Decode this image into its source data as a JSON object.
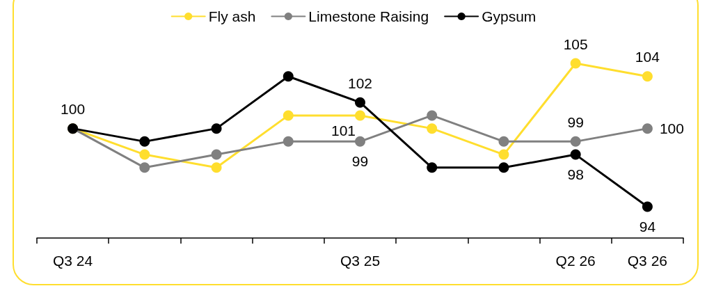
{
  "chart_data": {
    "type": "line",
    "categories": [
      "Q3 24",
      null,
      null,
      null,
      "Q3 25",
      null,
      null,
      "Q2 26",
      "Q3 26"
    ],
    "legend": "top",
    "marker": "circle",
    "line_style": "solid",
    "grid": false,
    "tick_labels": "x",
    "series": [
      {
        "name": "Fly ash",
        "color": "#ffde2e",
        "values": [
          100,
          98,
          97,
          101,
          101,
          100,
          98,
          105,
          104
        ],
        "value_labels": [
          null,
          null,
          null,
          null,
          "101",
          null,
          null,
          "105",
          "104"
        ]
      },
      {
        "name": "Limestone Raising",
        "color": "#808080",
        "values": [
          100,
          97,
          98,
          99,
          99,
          101,
          99,
          99,
          100
        ],
        "value_labels": [
          null,
          null,
          null,
          null,
          "99",
          null,
          null,
          "99",
          "100"
        ]
      },
      {
        "name": "Gypsum",
        "color": "#000000",
        "values": [
          100,
          99,
          100,
          104,
          102,
          97,
          97,
          98,
          94
        ],
        "value_labels": [
          "100",
          null,
          null,
          null,
          "102",
          null,
          null,
          "98",
          "94"
        ]
      }
    ]
  }
}
